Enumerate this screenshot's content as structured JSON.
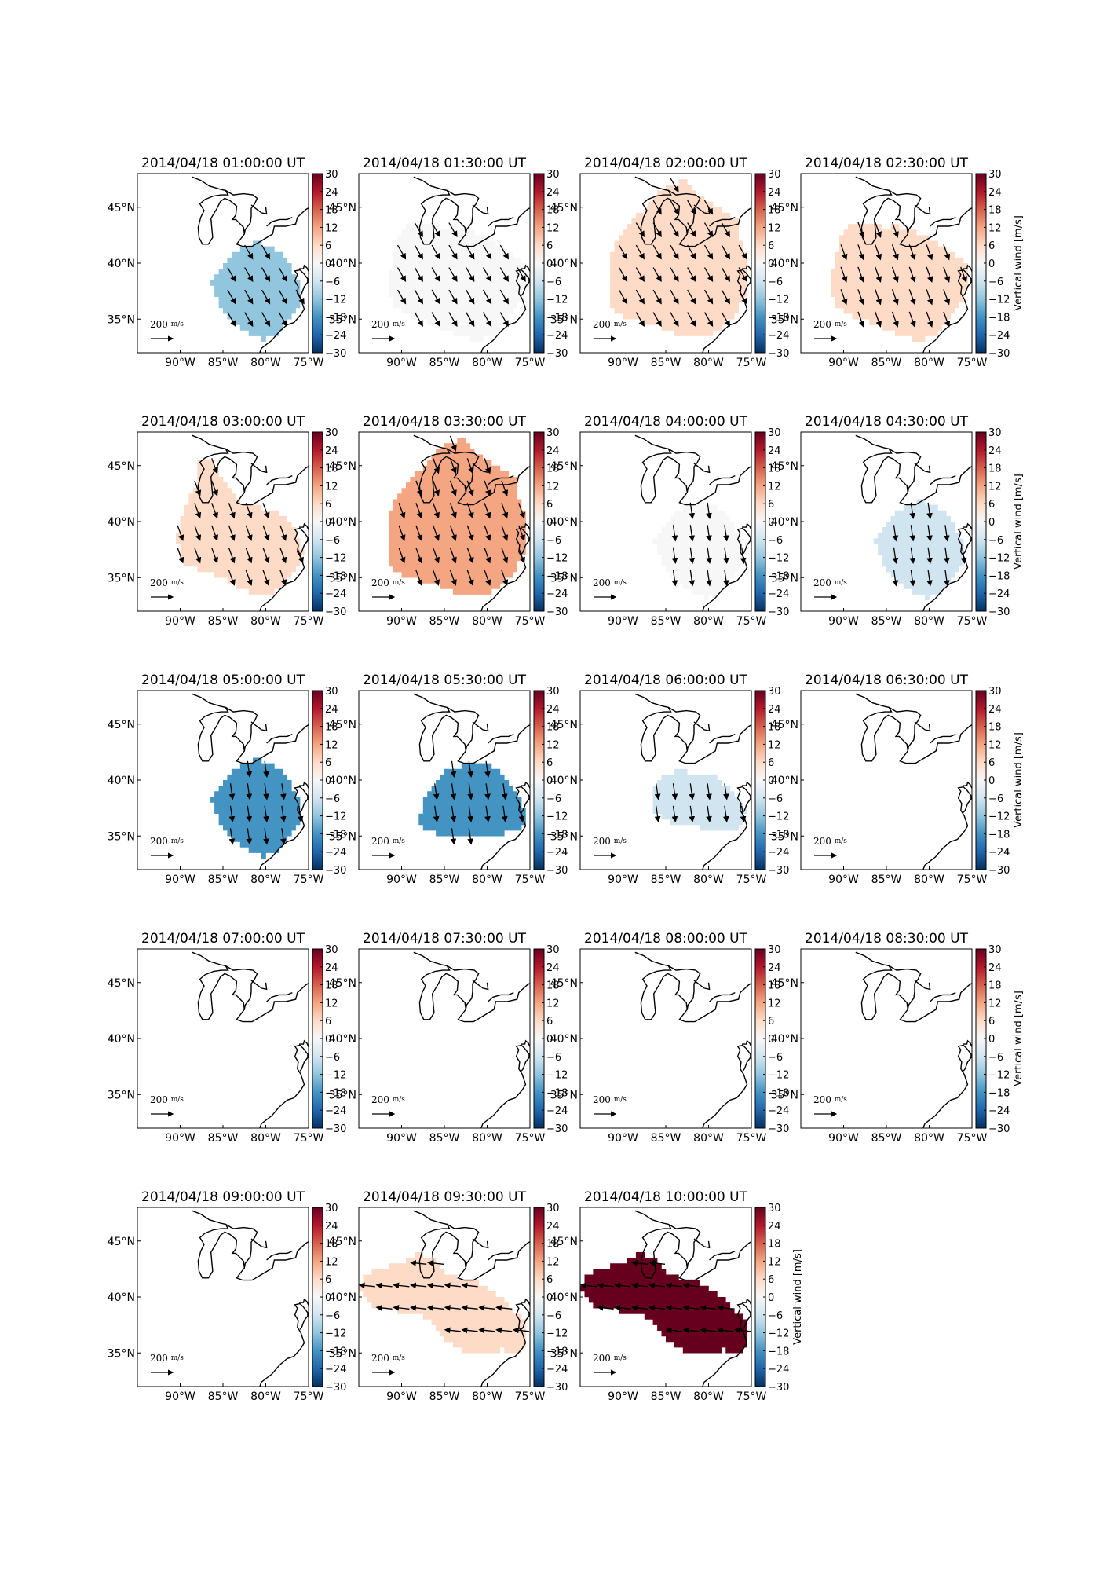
{
  "figure": {
    "colorbar_label": "Vertical wind [m/s]",
    "colorbar_ticks": [
      "30",
      "24",
      "18",
      "12",
      "6",
      "0",
      "−6",
      "−12",
      "−18",
      "−24",
      "−30"
    ],
    "lon_ticks": [
      "90°W",
      "85°W",
      "80°W",
      "75°W"
    ],
    "lat_ticks": [
      "45°N",
      "40°N",
      "35°N"
    ],
    "reference_vector_label": "200",
    "reference_vector_unit": "m/s"
  },
  "colors": {
    "cmap": [
      "#053061",
      "#2166ac",
      "#4393c3",
      "#92c5de",
      "#d1e5f0",
      "#f7f7f7",
      "#fddbc7",
      "#f4a582",
      "#d6604d",
      "#b2182b",
      "#67001f"
    ],
    "coast": "#000000",
    "arrow": "#000000"
  },
  "chart_data": {
    "type": "heatmap",
    "description_units": "vertical wind m/s; map extent lon -95 to -75, lat 32 to 48",
    "xlim": [
      -95,
      -75
    ],
    "ylim": [
      32,
      48
    ],
    "clim": [
      -30,
      30
    ],
    "panels": [
      {
        "title": "2014/04/18 01:00:00 UT",
        "value": -11,
        "region": "south",
        "arrow_dir": "SE",
        "colorbar_label": false
      },
      {
        "title": "2014/04/18 01:30:00 UT",
        "value": 1,
        "region": "mid_wide",
        "arrow_dir": "SE",
        "colorbar_label": false
      },
      {
        "title": "2014/04/18 02:00:00 UT",
        "value": 6,
        "region": "full",
        "arrow_dir": "SE",
        "colorbar_label": false
      },
      {
        "title": "2014/04/18 02:30:00 UT",
        "value": 3,
        "region": "mid_wide",
        "arrow_dir": "SSE",
        "colorbar_label": true
      },
      {
        "title": "2014/04/18 03:00:00 UT",
        "value": 3,
        "region": "north_mid",
        "arrow_dir": "SSE",
        "colorbar_label": false
      },
      {
        "title": "2014/04/18 03:30:00 UT",
        "value": 10,
        "region": "full",
        "arrow_dir": "SSE",
        "colorbar_label": false
      },
      {
        "title": "2014/04/18 04:00:00 UT",
        "value": 2,
        "region": "south",
        "arrow_dir": "S",
        "colorbar_label": false
      },
      {
        "title": "2014/04/18 04:30:00 UT",
        "value": -5,
        "region": "south",
        "arrow_dir": "S",
        "colorbar_label": true
      },
      {
        "title": "2014/04/18 05:00:00 UT",
        "value": -14,
        "region": "south",
        "arrow_dir": "S",
        "colorbar_label": false
      },
      {
        "title": "2014/04/18 05:30:00 UT",
        "value": -14,
        "region": "south_wide",
        "arrow_dir": "S",
        "colorbar_label": false
      },
      {
        "title": "2014/04/18 06:00:00 UT",
        "value": -7,
        "region": "south_small",
        "arrow_dir": "S",
        "colorbar_label": false
      },
      {
        "title": "2014/04/18 06:30:00 UT",
        "value": null,
        "region": "none",
        "arrow_dir": "",
        "colorbar_label": true
      },
      {
        "title": "2014/04/18 07:00:00 UT",
        "value": null,
        "region": "none",
        "arrow_dir": "",
        "colorbar_label": false
      },
      {
        "title": "2014/04/18 07:30:00 UT",
        "value": null,
        "region": "none",
        "arrow_dir": "",
        "colorbar_label": false
      },
      {
        "title": "2014/04/18 08:00:00 UT",
        "value": null,
        "region": "none",
        "arrow_dir": "",
        "colorbar_label": false
      },
      {
        "title": "2014/04/18 08:30:00 UT",
        "value": null,
        "region": "none",
        "arrow_dir": "",
        "colorbar_label": true
      },
      {
        "title": "2014/04/18 09:00:00 UT",
        "value": null,
        "region": "none",
        "arrow_dir": "",
        "colorbar_label": false
      },
      {
        "title": "2014/04/18 09:30:00 UT",
        "value": 5,
        "region": "band",
        "arrow_dir": "W",
        "colorbar_label": false
      },
      {
        "title": "2014/04/18 10:00:00 UT",
        "value": 30,
        "region": "band",
        "arrow_dir": "W",
        "colorbar_label": true
      }
    ]
  }
}
